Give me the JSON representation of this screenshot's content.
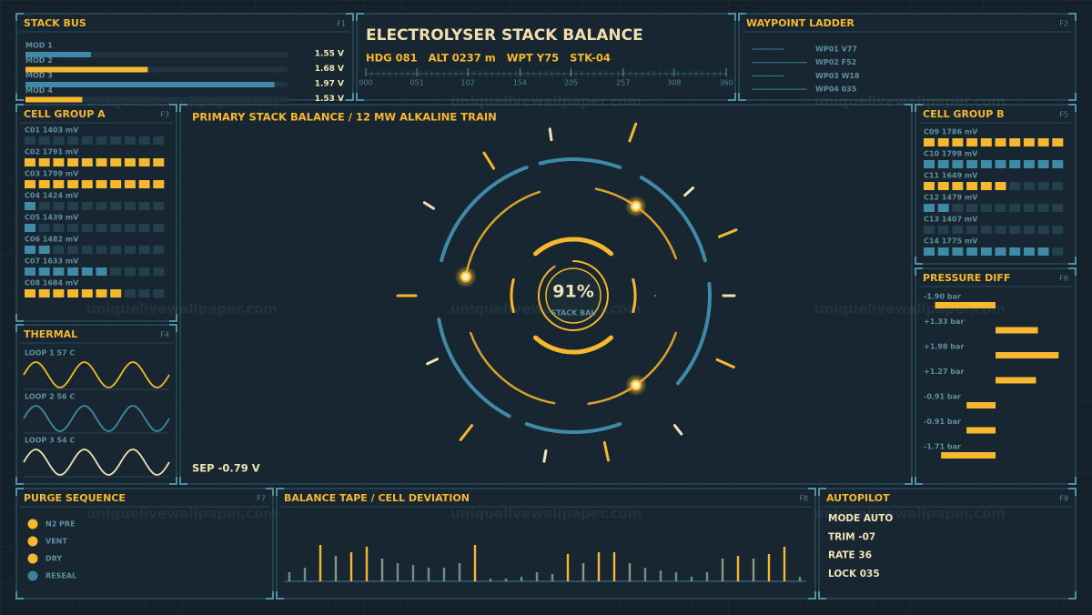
{
  "watermark": "uniquelivewallpaper.com",
  "stack_bus": {
    "title": "STACK BUS",
    "key": "F1",
    "scale": [
      1.4,
      2.0
    ],
    "rows": [
      {
        "label": "MOD 1",
        "value": 1.55,
        "value_label": "1.55 V",
        "color": "#3f8aa6"
      },
      {
        "label": "MOD 2",
        "value": 1.68,
        "value_label": "1.68 V",
        "color": "#f5b82e"
      },
      {
        "label": "MOD 3",
        "value": 1.97,
        "value_label": "1.97 V",
        "color": "#3f8aa6"
      },
      {
        "label": "MOD 4",
        "value": 1.53,
        "value_label": "1.53 V",
        "color": "#f5b82e"
      }
    ]
  },
  "header": {
    "title": "ELECTROLYSER STACK BALANCE",
    "readouts": [
      "HDG 081",
      "ALT 0237 m",
      "WPT Y75",
      "STK-04"
    ],
    "scale": [
      0,
      360
    ],
    "scale_ticks": [
      {
        "value": 0,
        "label": "000"
      },
      {
        "value": 51,
        "label": "051"
      },
      {
        "value": 102,
        "label": "102"
      },
      {
        "value": 154,
        "label": "154"
      },
      {
        "value": 205,
        "label": "205"
      },
      {
        "value": 257,
        "label": "257"
      },
      {
        "value": 308,
        "label": "308"
      },
      {
        "value": 360,
        "label": "360"
      }
    ]
  },
  "waypoint_ladder": {
    "title": "WAYPOINT LADDER",
    "key": "F2",
    "items": [
      "WP01 V77",
      "WP02 F52",
      "WP03 W18",
      "WP04 035"
    ]
  },
  "cell_group_a": {
    "title": "CELL GROUP A",
    "key": "F3",
    "scale": [
      1400,
      1800
    ],
    "rows": [
      {
        "label": "C01 1403 mV",
        "value": 1403,
        "color": "#3f8aa6"
      },
      {
        "label": "C02 1791 mV",
        "value": 1791,
        "color": "#f5b82e"
      },
      {
        "label": "C03 1799 mV",
        "value": 1799,
        "color": "#f5b82e"
      },
      {
        "label": "C04 1424 mV",
        "value": 1424,
        "color": "#3f8aa6"
      },
      {
        "label": "C05 1439 mV",
        "value": 1439,
        "color": "#3f8aa6"
      },
      {
        "label": "C06 1482 mV",
        "value": 1482,
        "color": "#3f8aa6"
      },
      {
        "label": "C07 1633 mV",
        "value": 1633,
        "color": "#3f8aa6"
      },
      {
        "label": "C08 1684 mV",
        "value": 1684,
        "color": "#f5b82e"
      }
    ]
  },
  "cell_group_b": {
    "title": "CELL GROUP B",
    "key": "F5",
    "scale": [
      1400,
      1800
    ],
    "rows": [
      {
        "label": "C09 1786 mV",
        "value": 1786,
        "color": "#f5b82e"
      },
      {
        "label": "C10 1798 mV",
        "value": 1798,
        "color": "#3f8aa6"
      },
      {
        "label": "C11 1649 mV",
        "value": 1649,
        "color": "#f5b82e"
      },
      {
        "label": "C12 1479 mV",
        "value": 1479,
        "color": "#3f8aa6"
      },
      {
        "label": "C13 1407 mV",
        "value": 1407,
        "color": "#3f8aa6"
      },
      {
        "label": "C14 1775 mV",
        "value": 1775,
        "color": "#3f8aa6"
      }
    ]
  },
  "thermal": {
    "title": "THERMAL",
    "key": "F4",
    "loops": [
      {
        "label": "LOOP 1 57 C",
        "color": "#f5b82e"
      },
      {
        "label": "LOOP 2 56 C",
        "color": "#3f8aa6"
      },
      {
        "label": "LOOP 3 54 C",
        "color": "#f1e3b8"
      }
    ]
  },
  "main": {
    "title": "PRIMARY STACK BALANCE / 12 MW ALKALINE TRAIN",
    "readout": "SEP -0.79 V",
    "gauge": {
      "value": 91,
      "label": "91%",
      "caption": "STACK BAL",
      "max": 100
    }
  },
  "pressure_diff": {
    "title": "PRESSURE DIFF",
    "key": "F6",
    "scale": [
      -2.4,
      2.4
    ],
    "rows": [
      {
        "label": "-1.90 bar",
        "value": -1.9
      },
      {
        "label": "+1.33 bar",
        "value": 1.33
      },
      {
        "label": "+1.98 bar",
        "value": 1.98
      },
      {
        "label": "+1.27 bar",
        "value": 1.27
      },
      {
        "label": "-0.91 bar",
        "value": -0.91
      },
      {
        "label": "-0.91 bar",
        "value": -0.91
      },
      {
        "label": "-1.71 bar",
        "value": -1.71
      }
    ]
  },
  "purge_sequence": {
    "title": "PURGE SEQUENCE",
    "key": "F7",
    "steps": [
      {
        "label": "N2 PRE",
        "color": "#f5b82e"
      },
      {
        "label": "VENT",
        "color": "#f5b82e"
      },
      {
        "label": "DRY",
        "color": "#f5b82e"
      },
      {
        "label": "RESEAL",
        "color": "#3f7f99"
      }
    ]
  },
  "balance_tape": {
    "title": "BALANCE TAPE / CELL DEVIATION",
    "key": "F8",
    "values": [
      10,
      15,
      40,
      28,
      32,
      38,
      25,
      20,
      18,
      15,
      15,
      20,
      40,
      3,
      3,
      5,
      10,
      8,
      30,
      20,
      32,
      32,
      20,
      15,
      12,
      10,
      5,
      10,
      25,
      28,
      25,
      30,
      38,
      5
    ],
    "colors": [
      "#6f8f8a",
      "#6f8f8a",
      "#f5b82e",
      "#8a9a88",
      "#f5b82e",
      "#f5b82e",
      "#8a9a88",
      "#6f8f8a",
      "#6f8f8a",
      "#6f8f8a",
      "#6f8f8a",
      "#6f8f8a",
      "#f5b82e",
      "#6f8f8a",
      "#6f8f8a",
      "#6f8f8a",
      "#6f8f8a",
      "#6f8f8a",
      "#f5b82e",
      "#8a9a88",
      "#f5b82e",
      "#f5b82e",
      "#8a9a88",
      "#6f8f8a",
      "#6f8f8a",
      "#6f8f8a",
      "#6f8f8a",
      "#6f8f8a",
      "#8a9a88",
      "#f5b82e",
      "#8a9a88",
      "#f5b82e",
      "#f5b82e",
      "#6f8f8a"
    ]
  },
  "autopilot": {
    "title": "AUTOPILOT",
    "key": "F9",
    "lines": [
      "MODE AUTO",
      "TRIM -07",
      "RATE 36",
      "LOCK 035"
    ]
  }
}
